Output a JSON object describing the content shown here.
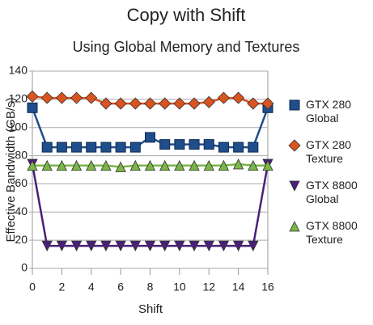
{
  "chart_data": {
    "type": "line",
    "title": "Copy with Shift",
    "subtitle": "Using Global Memory and Textures",
    "x_label": "Shift",
    "y_label": "Effective Bandwidth (GB/s)",
    "x": [
      0,
      1,
      2,
      3,
      4,
      5,
      6,
      7,
      8,
      9,
      10,
      11,
      12,
      13,
      14,
      15,
      16
    ],
    "xlim": [
      0,
      16
    ],
    "xticks": [
      0,
      2,
      4,
      6,
      8,
      10,
      12,
      14,
      16
    ],
    "ylim": [
      0,
      140
    ],
    "yticks": [
      0,
      20,
      40,
      60,
      80,
      100,
      120,
      140
    ],
    "grid": true,
    "legend": "right",
    "series": [
      {
        "name": "GTX 280 Global",
        "color": "#1f4e8c",
        "marker": "square",
        "values": [
          114,
          86,
          86,
          86,
          86,
          86,
          86,
          86,
          93,
          88,
          88,
          88,
          88,
          86,
          86,
          86,
          114
        ]
      },
      {
        "name": "GTX 280 Texture",
        "color": "#d9541e",
        "marker": "diamond",
        "values": [
          122,
          121,
          121,
          121,
          121,
          117,
          117,
          117,
          117,
          117,
          117,
          117,
          118,
          121,
          121,
          117,
          117
        ]
      },
      {
        "name": "GTX 8800 Global",
        "color": "#4b1f7a",
        "marker": "triangle-down",
        "values": [
          74,
          16,
          16,
          16,
          16,
          16,
          16,
          16,
          16,
          16,
          16,
          16,
          16,
          16,
          16,
          16,
          74
        ]
      },
      {
        "name": "GTX 8800 Texture",
        "color": "#7ab648",
        "marker": "triangle-up",
        "values": [
          73,
          73,
          73,
          73,
          73,
          73,
          72,
          73,
          73,
          73,
          73,
          73,
          73,
          73,
          74,
          73,
          73
        ]
      }
    ]
  }
}
